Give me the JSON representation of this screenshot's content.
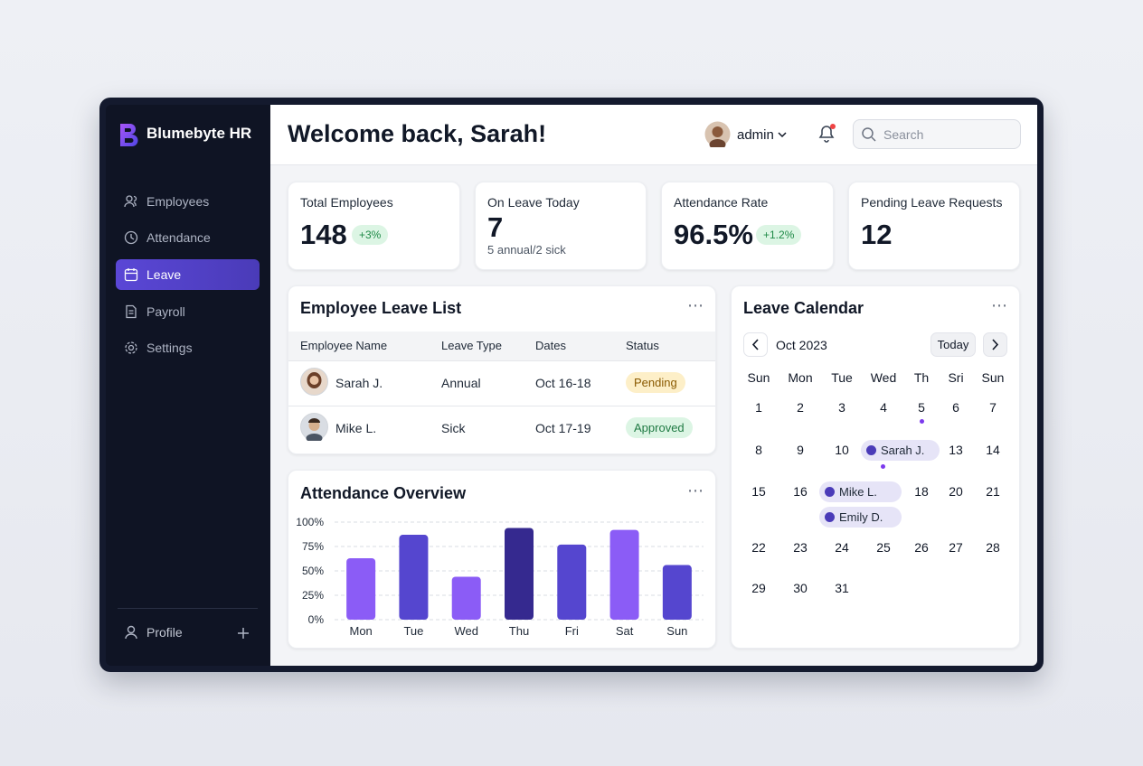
{
  "sidebar": {
    "brand": "Blumebyte HR",
    "nav": [
      {
        "label": "Employees",
        "active": false
      },
      {
        "label": "Attendance",
        "active": false
      },
      {
        "label": "Leave",
        "active": true
      },
      {
        "label": "Payroll",
        "active": false
      },
      {
        "label": "Settings",
        "active": false
      }
    ],
    "profile": "Profile"
  },
  "header": {
    "title": "Welcome back, Sarah!",
    "user": "admin",
    "search_placeholder": "Search"
  },
  "stats": [
    {
      "label": "Total Employees",
      "value": "148",
      "badge": "+3%"
    },
    {
      "label": "On Leave Today",
      "value": "7",
      "note": "5 annual/2 sick"
    },
    {
      "label": "Attendance Rate",
      "value": "96.5%",
      "badge": "+1.2%"
    },
    {
      "label": "Pending Leave Requests",
      "value": "12"
    }
  ],
  "leave_list": {
    "title": "Employee Leave List",
    "columns": [
      "Employee Name",
      "Leave Type",
      "Dates",
      "Status"
    ],
    "rows": [
      [
        "Sarah J.",
        "Annual",
        "Oct 16-18",
        "Pending"
      ],
      [
        "Mike L.",
        "Sick",
        "Oct 17-19",
        "Approved"
      ]
    ]
  },
  "chart_data": {
    "type": "bar",
    "title": "Attendance Overview",
    "categories": [
      "Mon",
      "Tue",
      "Wed",
      "Thu",
      "Fri",
      "Sat",
      "Sun"
    ],
    "values": [
      63,
      87,
      44,
      94,
      77,
      92,
      56
    ],
    "colors": [
      "#8b5cf6",
      "#5546cf",
      "#8b5cf6",
      "#35298f",
      "#5546cf",
      "#8b5cf6",
      "#5546cf"
    ],
    "ylim": [
      0,
      100
    ],
    "yticks": [
      {
        "value": 0,
        "label": "0%"
      },
      {
        "value": 25,
        "label": "25%"
      },
      {
        "value": 50,
        "label": "50%"
      },
      {
        "value": 75,
        "label": "75%"
      },
      {
        "value": 100,
        "label": "100%"
      }
    ],
    "grid": true
  },
  "calendar": {
    "title": "Leave Calendar",
    "month": "Oct 2023",
    "today": "Today",
    "weekdays": [
      "Sun",
      "Mon",
      "Tue",
      "Wed",
      "Th",
      "Sri",
      "Sun"
    ],
    "weeks": [
      [
        1,
        2,
        3,
        4,
        5,
        6,
        7
      ],
      [
        8,
        9,
        10,
        {
          "events": [
            "Sarah J."
          ]
        },
        null,
        13,
        14
      ],
      [
        15,
        16,
        {
          "events": [
            "Mike L.",
            "Emily D."
          ]
        },
        null,
        18,
        20,
        21
      ],
      [
        22,
        23,
        24,
        25,
        26,
        27,
        28
      ],
      [
        29,
        30,
        31,
        null,
        null,
        null,
        null
      ]
    ]
  }
}
